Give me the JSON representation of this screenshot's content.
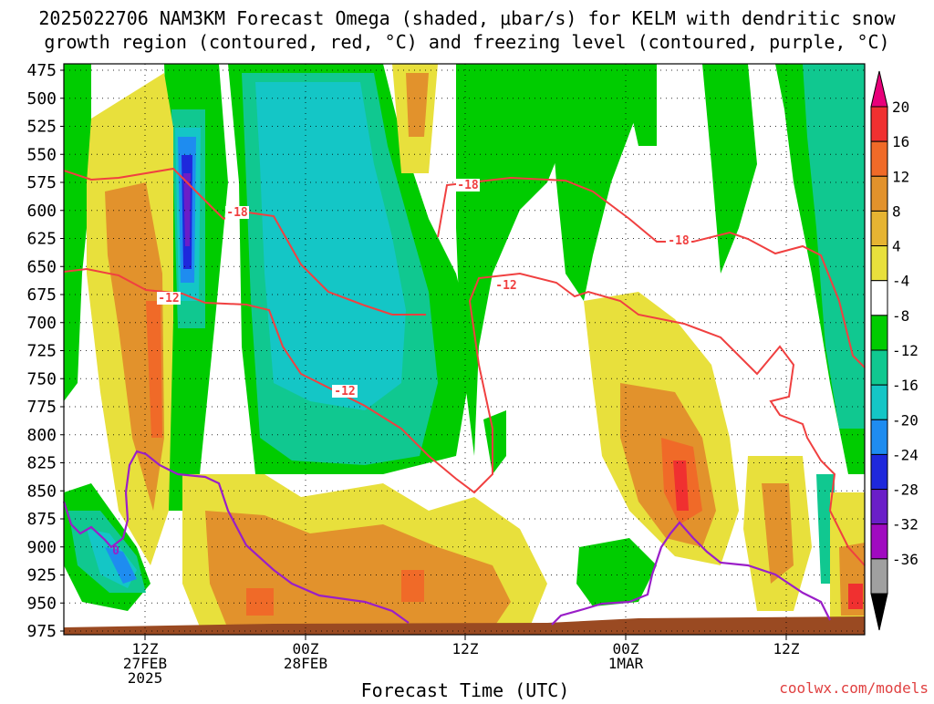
{
  "title_line1": "2025022706 NAM3KM Forecast Omega (shaded, μbar/s) for KELM with dendritic snow",
  "title_line2": "growth region (contoured, red, °C) and freezing level (contoured, purple, °C)",
  "xlabel": "Forecast Time (UTC)",
  "credit": "coolwx.com/models",
  "chart_data": {
    "type": "heatmap",
    "y_axis": {
      "label": "",
      "scale": "pressure (hPa), increasing downward",
      "ticks": [
        "475",
        "500",
        "525",
        "550",
        "575",
        "600",
        "625",
        "650",
        "675",
        "700",
        "725",
        "750",
        "775",
        "800",
        "825",
        "850",
        "875",
        "900",
        "925",
        "950",
        "975"
      ]
    },
    "x_axis": {
      "ticks": [
        {
          "line1": "12Z",
          "line2": "27FEB",
          "line3": "2025"
        },
        {
          "line1": "00Z",
          "line2": "28FEB",
          "line3": ""
        },
        {
          "line1": "12Z",
          "line2": "",
          "line3": ""
        },
        {
          "line1": "00Z",
          "line2": "1MAR",
          "line3": ""
        },
        {
          "line1": "12Z",
          "line2": "",
          "line3": ""
        }
      ]
    },
    "colorbar": {
      "units": "μbar/s",
      "labels": [
        "20",
        "16",
        "12",
        "8",
        "4",
        "-4",
        "-8",
        "-12",
        "-16",
        "-20",
        "-24",
        "-28",
        "-32",
        "-36"
      ],
      "bins": [
        {
          "color": "#e8007a"
        },
        {
          "color": "#f03030"
        },
        {
          "color": "#f06a28"
        },
        {
          "color": "#e2922c"
        },
        {
          "color": "#e6b432"
        },
        {
          "color": "#e8e03c"
        },
        {
          "color": "#ffffff"
        },
        {
          "color": "#00cc00"
        },
        {
          "color": "#10c890"
        },
        {
          "color": "#14c6c6"
        },
        {
          "color": "#1e8cf0"
        },
        {
          "color": "#1e28dc"
        },
        {
          "color": "#6a1ec8"
        },
        {
          "color": "#a00ac0"
        },
        {
          "color": "#a0a0a0"
        },
        {
          "color": "#000000"
        }
      ]
    },
    "contour_labels": {
      "dgz": [
        "-18",
        "-12",
        "-18",
        "-12",
        "-12",
        "-18"
      ],
      "freezing": [
        "0"
      ]
    },
    "grid": "dotted",
    "colors": {
      "dgz_contour": "#f04040",
      "freezing_contour": "#9a1ec8",
      "ground": "#9a4a22"
    }
  }
}
